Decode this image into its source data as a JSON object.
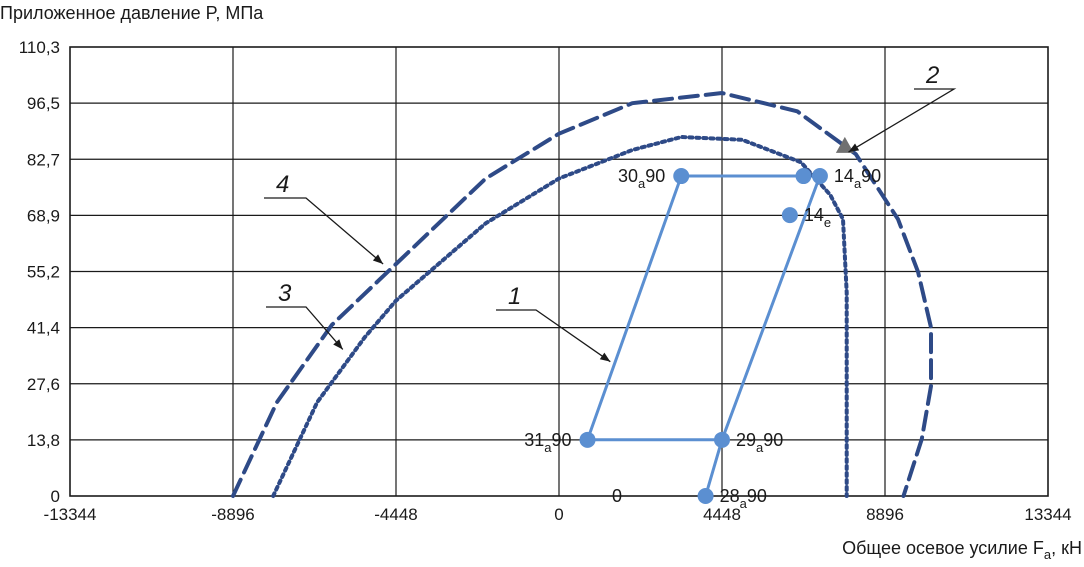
{
  "chart_data": {
    "type": "line",
    "ylabel": "Приложенное давление P, МПа",
    "xlabel": "Общее осевое усилие F",
    "xlabel_sub": "a",
    "xlabel_unit": ", кН",
    "xlim": [
      -13344,
      13344
    ],
    "ylim": [
      0,
      110.3
    ],
    "x_ticks": [
      "-13344",
      "-8896",
      "-4448",
      "0",
      "4448",
      "8896",
      "13344"
    ],
    "y_ticks": [
      "0",
      "13,8",
      "27,6",
      "41,4",
      "55,2",
      "68,9",
      "82,7",
      "96,5",
      "110,3"
    ],
    "grid": true,
    "colors": {
      "load_path": "#5b8fd1",
      "envelope": "#2e4a87",
      "marker": "#707070"
    },
    "series": [
      {
        "id": "1",
        "style": "solid",
        "points": [
          [
            4000,
            0
          ],
          [
            4448,
            13.8
          ],
          [
            778,
            13.8
          ],
          [
            3336,
            78.6
          ],
          [
            6672,
            78.6
          ],
          [
            7120,
            78.6
          ],
          [
            4448,
            13.8
          ]
        ]
      },
      {
        "id": "4",
        "style": "dashed",
        "points": [
          [
            -8896,
            0
          ],
          [
            -7700,
            23
          ],
          [
            -6200,
            42
          ],
          [
            -4448,
            57
          ],
          [
            -2000,
            78
          ],
          [
            0,
            89
          ],
          [
            2000,
            96.5
          ],
          [
            4448,
            99
          ],
          [
            6500,
            94.5
          ],
          [
            8100,
            84
          ],
          [
            9250,
            68
          ],
          [
            9800,
            55
          ],
          [
            10150,
            41.4
          ],
          [
            10150,
            27
          ],
          [
            9900,
            14
          ],
          [
            9400,
            0
          ]
        ]
      },
      {
        "id": "3",
        "style": "dotted",
        "points": [
          [
            -7800,
            0
          ],
          [
            -6600,
            23
          ],
          [
            -5300,
            39
          ],
          [
            -4448,
            48
          ],
          [
            -2000,
            67
          ],
          [
            0,
            78
          ],
          [
            2000,
            85
          ],
          [
            3336,
            88.2
          ],
          [
            5000,
            87.5
          ],
          [
            6600,
            82
          ],
          [
            7400,
            74
          ],
          [
            7750,
            68
          ],
          [
            7850,
            50
          ],
          [
            7850,
            0
          ]
        ]
      }
    ],
    "markers": [
      {
        "label": "28",
        "sub": "a",
        "suffix": "90",
        "x": 4000,
        "y": 0,
        "label_side": "right"
      },
      {
        "label": "29",
        "sub": "a",
        "suffix": "90",
        "x": 4448,
        "y": 13.8,
        "label_side": "right"
      },
      {
        "label": "31",
        "sub": "a",
        "suffix": "90",
        "x": 778,
        "y": 13.8,
        "label_side": "left"
      },
      {
        "label": "30",
        "sub": "a",
        "suffix": "90",
        "x": 3336,
        "y": 78.6,
        "label_side": "left"
      },
      {
        "label": "",
        "sub": "",
        "suffix": "",
        "x": 6672,
        "y": 78.6,
        "label_side": "none"
      },
      {
        "label": "14",
        "sub": "a",
        "suffix": "90",
        "x": 7120,
        "y": 78.6,
        "label_side": "right"
      },
      {
        "label": "14",
        "sub": "e",
        "suffix": "",
        "x": 6300,
        "y": 69,
        "label_side": "right"
      }
    ],
    "annotations": [
      {
        "text": "0",
        "x": 900,
        "y": 0
      }
    ],
    "triangle_marker": {
      "x": 7800,
      "y": 86
    },
    "callouts": [
      {
        "text": "1",
        "target_series": "1",
        "target": [
          1400,
          33
        ]
      },
      {
        "text": "2",
        "target_series": "triangle",
        "target": [
          7900,
          84.5
        ]
      },
      {
        "text": "3",
        "target_series": "3",
        "target": [
          -5900,
          36
        ]
      },
      {
        "text": "4",
        "target_series": "4",
        "target": [
          -4800,
          57
        ]
      }
    ]
  }
}
